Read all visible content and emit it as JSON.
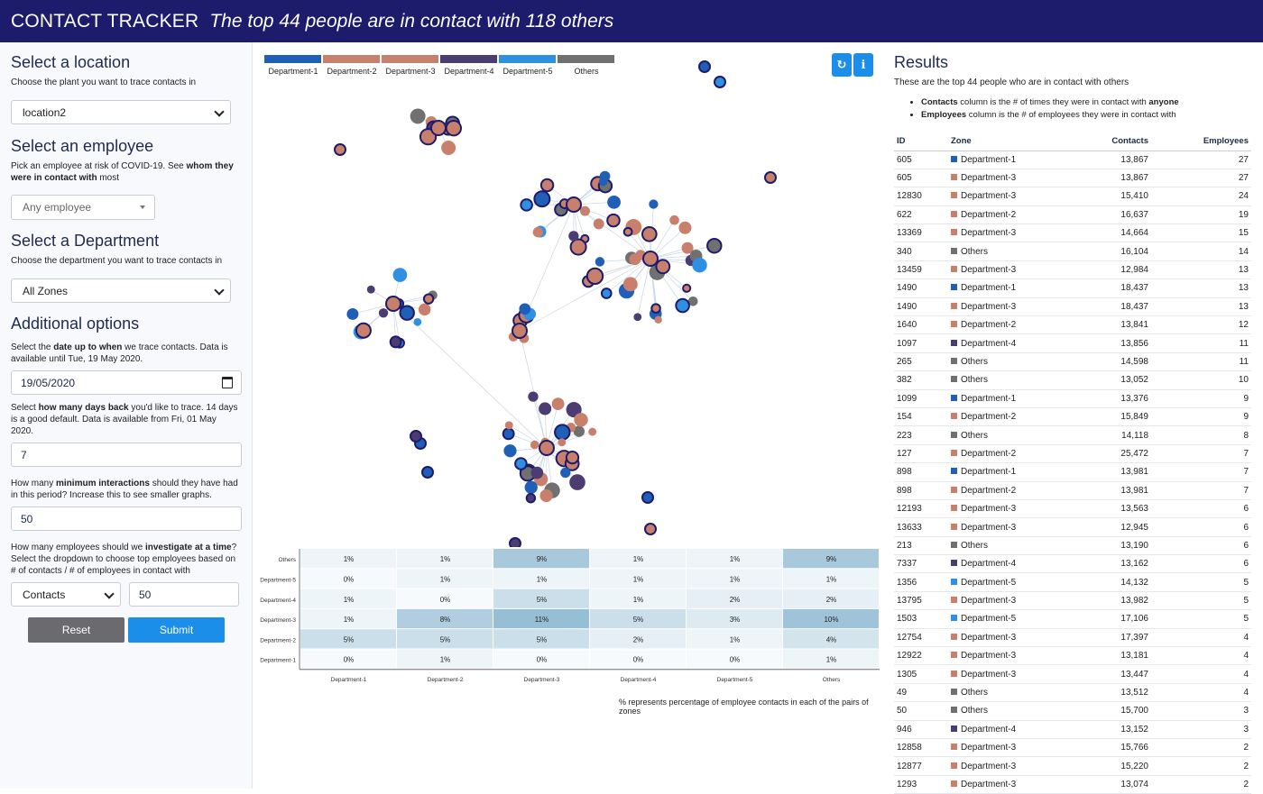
{
  "header": {
    "brand": "CONTACT TRACKER",
    "subtitle": "The top 44 people are in contact with 118 others"
  },
  "colors": {
    "header_bg": "#1d1b6b",
    "accent": "#1a8ee8",
    "dept1": "#1f5fb8",
    "dept2": "#c8806c",
    "dept3": "#c8806c",
    "dept4": "#4b3c72",
    "dept5": "#2f8fe0",
    "others": "#707070"
  },
  "left": {
    "location": {
      "title": "Select a location",
      "desc": "Choose the plant you want to trace contacts in",
      "value": "location2"
    },
    "employee": {
      "title": "Select an employee",
      "desc_1": "Pick an employee at risk of COVID-19. See ",
      "desc_bold_1": "whom they were in contact with",
      "desc_2": " most",
      "placeholder": "Any employee"
    },
    "department": {
      "title": "Select a Department",
      "desc": "Choose the department you want to trace contacts in",
      "value": "All Zones"
    },
    "options": {
      "title": "Additional options",
      "date_desc_1": "Select the ",
      "date_desc_bold": "date up to when",
      "date_desc_2": " we trace contacts. Data is available until Tue, 19 May 2020.",
      "date_value": "19/05/2020",
      "days_desc_1": "Select ",
      "days_desc_bold": "how many days back",
      "days_desc_2": " you'd like to trace. 14 days is a good default. Data is available from Fri, 01 May 2020.",
      "days_value": "7",
      "min_desc_1": "How many ",
      "min_desc_bold": "minimum interactions",
      "min_desc_2": " should they have had in this period? Increase this to see smaller graphs.",
      "min_value": "50",
      "inv_desc_1": "How many employees should we ",
      "inv_desc_bold": "investigate at a time",
      "inv_desc_2": "? Select the dropdown to choose top employees based on # of contacts / # of employees in contact with",
      "inv_select": "Contacts",
      "inv_value": "50"
    },
    "buttons": {
      "reset": "Reset",
      "submit": "Submit"
    }
  },
  "center": {
    "legend": [
      "Department-1",
      "Department-2",
      "Department-3",
      "Department-4",
      "Department-5",
      "Others"
    ],
    "tools": {
      "reset_icon": "refresh-icon",
      "info_icon": "info-icon",
      "info_glyph": "i"
    },
    "heatmap_note": "% represents percentage of employee contacts in each of the pairs of zones"
  },
  "chart_data": {
    "type": "heatmap",
    "x_categories": [
      "Department-1",
      "Department-2",
      "Department-3",
      "Department-4",
      "Department-5",
      "Others"
    ],
    "y_categories": [
      "Others",
      "Department-5",
      "Department-4",
      "Department-3",
      "Department-2",
      "Department-1"
    ],
    "values": [
      [
        1,
        1,
        9,
        1,
        1,
        9
      ],
      [
        0,
        1,
        1,
        1,
        1,
        1
      ],
      [
        1,
        0,
        5,
        1,
        2,
        2
      ],
      [
        1,
        8,
        11,
        5,
        3,
        10
      ],
      [
        5,
        5,
        5,
        2,
        1,
        4
      ],
      [
        0,
        1,
        0,
        0,
        0,
        1
      ]
    ],
    "unit": "%"
  },
  "results": {
    "title": "Results",
    "desc": "These are the top 44 people who are in contact with others",
    "bullet1_bold": "Contacts",
    "bullet1_rest": " column is the # of times they were in contact with ",
    "bullet1_bold2": "anyone",
    "bullet2_bold": "Employees",
    "bullet2_rest": " column is the # of employees they were in contact with",
    "columns": {
      "id": "ID",
      "zone": "Zone",
      "contacts": "Contacts",
      "employees": "Employees"
    },
    "rows": [
      {
        "id": "605",
        "zone": "Department-1",
        "contacts": "13,867",
        "employees": "27"
      },
      {
        "id": "605",
        "zone": "Department-3",
        "contacts": "13,867",
        "employees": "27"
      },
      {
        "id": "12830",
        "zone": "Department-3",
        "contacts": "15,410",
        "employees": "24"
      },
      {
        "id": "622",
        "zone": "Department-2",
        "contacts": "16,637",
        "employees": "19"
      },
      {
        "id": "13369",
        "zone": "Department-3",
        "contacts": "14,664",
        "employees": "15"
      },
      {
        "id": "340",
        "zone": "Others",
        "contacts": "16,104",
        "employees": "14"
      },
      {
        "id": "13459",
        "zone": "Department-3",
        "contacts": "12,984",
        "employees": "13"
      },
      {
        "id": "1490",
        "zone": "Department-1",
        "contacts": "18,437",
        "employees": "13"
      },
      {
        "id": "1490",
        "zone": "Department-3",
        "contacts": "18,437",
        "employees": "13"
      },
      {
        "id": "1640",
        "zone": "Department-2",
        "contacts": "13,841",
        "employees": "12"
      },
      {
        "id": "1097",
        "zone": "Department-4",
        "contacts": "13,856",
        "employees": "11"
      },
      {
        "id": "265",
        "zone": "Others",
        "contacts": "14,598",
        "employees": "11"
      },
      {
        "id": "382",
        "zone": "Others",
        "contacts": "13,052",
        "employees": "10"
      },
      {
        "id": "1099",
        "zone": "Department-1",
        "contacts": "13,376",
        "employees": "9"
      },
      {
        "id": "154",
        "zone": "Department-2",
        "contacts": "15,849",
        "employees": "9"
      },
      {
        "id": "223",
        "zone": "Others",
        "contacts": "14,118",
        "employees": "8"
      },
      {
        "id": "127",
        "zone": "Department-2",
        "contacts": "25,472",
        "employees": "7"
      },
      {
        "id": "898",
        "zone": "Department-1",
        "contacts": "13,981",
        "employees": "7"
      },
      {
        "id": "898",
        "zone": "Department-2",
        "contacts": "13,981",
        "employees": "7"
      },
      {
        "id": "12193",
        "zone": "Department-3",
        "contacts": "13,563",
        "employees": "6"
      },
      {
        "id": "13633",
        "zone": "Department-3",
        "contacts": "12,945",
        "employees": "6"
      },
      {
        "id": "213",
        "zone": "Others",
        "contacts": "13,190",
        "employees": "6"
      },
      {
        "id": "7337",
        "zone": "Department-4",
        "contacts": "13,162",
        "employees": "6"
      },
      {
        "id": "1356",
        "zone": "Department-5",
        "contacts": "14,132",
        "employees": "5"
      },
      {
        "id": "13795",
        "zone": "Department-3",
        "contacts": "13,982",
        "employees": "5"
      },
      {
        "id": "1503",
        "zone": "Department-5",
        "contacts": "17,106",
        "employees": "5"
      },
      {
        "id": "12754",
        "zone": "Department-3",
        "contacts": "17,397",
        "employees": "4"
      },
      {
        "id": "12922",
        "zone": "Department-3",
        "contacts": "13,181",
        "employees": "4"
      },
      {
        "id": "1305",
        "zone": "Department-3",
        "contacts": "13,447",
        "employees": "4"
      },
      {
        "id": "49",
        "zone": "Others",
        "contacts": "13,512",
        "employees": "4"
      },
      {
        "id": "50",
        "zone": "Others",
        "contacts": "15,700",
        "employees": "3"
      },
      {
        "id": "946",
        "zone": "Department-4",
        "contacts": "13,152",
        "employees": "3"
      },
      {
        "id": "12858",
        "zone": "Department-3",
        "contacts": "15,766",
        "employees": "2"
      },
      {
        "id": "12877",
        "zone": "Department-3",
        "contacts": "15,220",
        "employees": "2"
      },
      {
        "id": "1293",
        "zone": "Department-3",
        "contacts": "13,074",
        "employees": "2"
      }
    ]
  }
}
